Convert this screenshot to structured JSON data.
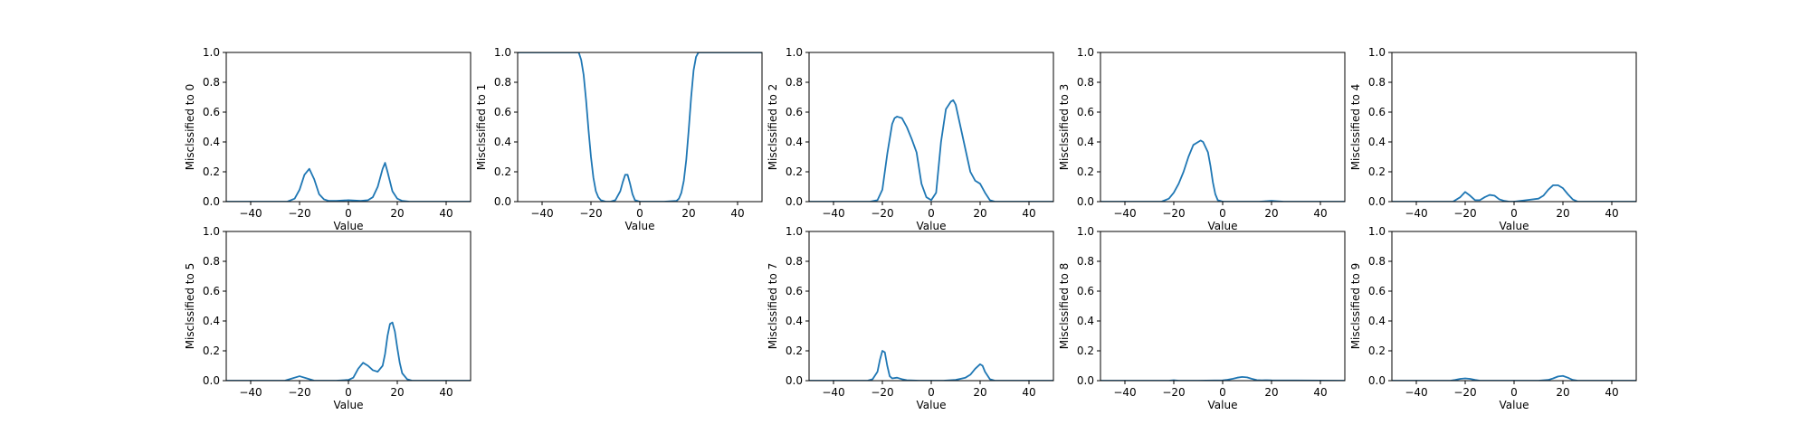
{
  "figure": {
    "line_color": "#1f77b4"
  },
  "chart_data": [
    {
      "type": "line",
      "ylabel": "Misclssified to 0",
      "xlabel": "Value",
      "xlim": [
        -50,
        50
      ],
      "ylim": [
        0,
        1.0
      ],
      "xticks": [
        -40,
        -20,
        0,
        20,
        40
      ],
      "yticks": [
        0.0,
        0.2,
        0.4,
        0.6,
        0.8,
        1.0
      ],
      "xtick_labels": [
        "−40",
        "−20",
        "0",
        "20",
        "40"
      ],
      "ytick_labels": [
        "0.0",
        "0.2",
        "0.4",
        "0.6",
        "0.8",
        "1.0"
      ],
      "series": [
        {
          "x": [
            -50,
            -30,
            -25,
            -22,
            -20,
            -18,
            -16,
            -14,
            -12,
            -10,
            -8,
            -5,
            0,
            5,
            8,
            10,
            12,
            14,
            15,
            16,
            18,
            20,
            22,
            25,
            30,
            50
          ],
          "y": [
            0,
            0,
            0,
            0.02,
            0.08,
            0.18,
            0.22,
            0.15,
            0.05,
            0.015,
            0.005,
            0.005,
            0.01,
            0.005,
            0.01,
            0.03,
            0.1,
            0.22,
            0.26,
            0.2,
            0.07,
            0.02,
            0.005,
            0,
            0,
            0
          ]
        }
      ]
    },
    {
      "type": "line",
      "ylabel": "Misclssified to 1",
      "xlabel": "Value",
      "xlim": [
        -50,
        50
      ],
      "ylim": [
        0,
        1.0
      ],
      "xticks": [
        -40,
        -20,
        0,
        20,
        40
      ],
      "yticks": [
        0.0,
        0.2,
        0.4,
        0.6,
        0.8,
        1.0
      ],
      "xtick_labels": [
        "−40",
        "−20",
        "0",
        "20",
        "40"
      ],
      "ytick_labels": [
        "0.0",
        "0.2",
        "0.4",
        "0.6",
        "0.8",
        "1.0"
      ],
      "series": [
        {
          "x": [
            -50,
            -26,
            -25,
            -24,
            -23,
            -22,
            -21,
            -20,
            -19,
            -18,
            -17,
            -16,
            -14,
            -12,
            -10,
            -8,
            -7,
            -6,
            -5,
            -4,
            -3,
            -2,
            0,
            5,
            10,
            15,
            16,
            17,
            18,
            19,
            20,
            21,
            22,
            23,
            24,
            25,
            50
          ],
          "y": [
            1.0,
            1.0,
            1.0,
            0.95,
            0.85,
            0.68,
            0.48,
            0.3,
            0.16,
            0.07,
            0.03,
            0.01,
            0,
            0,
            0.01,
            0.07,
            0.13,
            0.18,
            0.18,
            0.12,
            0.05,
            0.01,
            0,
            0,
            0,
            0.005,
            0.02,
            0.06,
            0.14,
            0.28,
            0.48,
            0.7,
            0.88,
            0.97,
            1.0,
            1.0,
            1.0
          ]
        }
      ]
    },
    {
      "type": "line",
      "ylabel": "Misclssified to 2",
      "xlabel": "Value",
      "xlim": [
        -50,
        50
      ],
      "ylim": [
        0,
        1.0
      ],
      "xticks": [
        -40,
        -20,
        0,
        20,
        40
      ],
      "yticks": [
        0.0,
        0.2,
        0.4,
        0.6,
        0.8,
        1.0
      ],
      "xtick_labels": [
        "−40",
        "−20",
        "0",
        "20",
        "40"
      ],
      "ytick_labels": [
        "0.0",
        "0.2",
        "0.4",
        "0.6",
        "0.8",
        "1.0"
      ],
      "series": [
        {
          "x": [
            -50,
            -25,
            -22,
            -20,
            -18,
            -16,
            -15,
            -14,
            -12,
            -10,
            -8,
            -6,
            -4,
            -2,
            0,
            2,
            4,
            6,
            8,
            9,
            10,
            12,
            14,
            16,
            18,
            20,
            22,
            24,
            26,
            50
          ],
          "y": [
            0,
            0,
            0.01,
            0.08,
            0.32,
            0.52,
            0.56,
            0.57,
            0.56,
            0.5,
            0.42,
            0.33,
            0.12,
            0.03,
            0.01,
            0.06,
            0.4,
            0.62,
            0.67,
            0.68,
            0.65,
            0.5,
            0.35,
            0.2,
            0.14,
            0.12,
            0.06,
            0.01,
            0,
            0
          ]
        }
      ]
    },
    {
      "type": "line",
      "ylabel": "Misclssified to 3",
      "xlabel": "Value",
      "xlim": [
        -50,
        50
      ],
      "ylim": [
        0,
        1.0
      ],
      "xticks": [
        -40,
        -20,
        0,
        20,
        40
      ],
      "yticks": [
        0.0,
        0.2,
        0.4,
        0.6,
        0.8,
        1.0
      ],
      "xtick_labels": [
        "−40",
        "−20",
        "0",
        "20",
        "40"
      ],
      "ytick_labels": [
        "0.0",
        "0.2",
        "0.4",
        "0.6",
        "0.8",
        "1.0"
      ],
      "series": [
        {
          "x": [
            -50,
            -25,
            -22,
            -20,
            -18,
            -16,
            -14,
            -12,
            -10,
            -9,
            -8,
            -6,
            -5,
            -4,
            -3,
            -2,
            0,
            5,
            15,
            18,
            20,
            22,
            25,
            50
          ],
          "y": [
            0,
            0,
            0.02,
            0.06,
            0.12,
            0.2,
            0.3,
            0.38,
            0.4,
            0.41,
            0.4,
            0.33,
            0.24,
            0.13,
            0.05,
            0.01,
            0,
            0,
            0,
            0.003,
            0.005,
            0.003,
            0,
            0
          ]
        }
      ]
    },
    {
      "type": "line",
      "ylabel": "Misclssified to 4",
      "xlabel": "Value",
      "xlim": [
        -50,
        50
      ],
      "ylim": [
        0,
        1.0
      ],
      "xticks": [
        -40,
        -20,
        0,
        20,
        40
      ],
      "yticks": [
        0.0,
        0.2,
        0.4,
        0.6,
        0.8,
        1.0
      ],
      "xtick_labels": [
        "−40",
        "−20",
        "0",
        "20",
        "40"
      ],
      "ytick_labels": [
        "0.0",
        "0.2",
        "0.4",
        "0.6",
        "0.8",
        "1.0"
      ],
      "series": [
        {
          "x": [
            -50,
            -25,
            -22,
            -20,
            -18,
            -16,
            -14,
            -12,
            -10,
            -8,
            -6,
            -4,
            -2,
            0,
            5,
            10,
            12,
            14,
            16,
            18,
            20,
            22,
            24,
            26,
            50
          ],
          "y": [
            0,
            0,
            0.03,
            0.065,
            0.04,
            0.01,
            0.01,
            0.03,
            0.045,
            0.04,
            0.015,
            0.005,
            0,
            0,
            0.01,
            0.02,
            0.04,
            0.08,
            0.11,
            0.11,
            0.09,
            0.05,
            0.015,
            0,
            0
          ]
        }
      ]
    },
    {
      "type": "line",
      "ylabel": "Misclssified to 5",
      "xlabel": "Value",
      "xlim": [
        -50,
        50
      ],
      "ylim": [
        0,
        1.0
      ],
      "xticks": [
        -40,
        -20,
        0,
        20,
        40
      ],
      "yticks": [
        0.0,
        0.2,
        0.4,
        0.6,
        0.8,
        1.0
      ],
      "xtick_labels": [
        "−40",
        "−20",
        "0",
        "20",
        "40"
      ],
      "ytick_labels": [
        "0.0",
        "0.2",
        "0.4",
        "0.6",
        "0.8",
        "1.0"
      ],
      "series": [
        {
          "x": [
            -50,
            -26,
            -23,
            -20,
            -17,
            -14,
            -10,
            -5,
            0,
            2,
            4,
            6,
            8,
            10,
            12,
            14,
            15,
            16,
            17,
            18,
            19,
            20,
            21,
            22,
            24,
            26,
            50
          ],
          "y": [
            0,
            0,
            0.015,
            0.03,
            0.015,
            0,
            0,
            0,
            0.005,
            0.02,
            0.08,
            0.12,
            0.1,
            0.07,
            0.06,
            0.1,
            0.18,
            0.3,
            0.38,
            0.39,
            0.33,
            0.22,
            0.12,
            0.05,
            0.01,
            0,
            0
          ]
        }
      ]
    },
    null,
    {
      "type": "line",
      "ylabel": "Misclssified to 7",
      "xlabel": "Value",
      "xlim": [
        -50,
        50
      ],
      "ylim": [
        0,
        1.0
      ],
      "xticks": [
        -40,
        -20,
        0,
        20,
        40
      ],
      "yticks": [
        0.0,
        0.2,
        0.4,
        0.6,
        0.8,
        1.0
      ],
      "xtick_labels": [
        "−40",
        "−20",
        "0",
        "20",
        "40"
      ],
      "ytick_labels": [
        "0.0",
        "0.2",
        "0.4",
        "0.6",
        "0.8",
        "1.0"
      ],
      "series": [
        {
          "x": [
            -50,
            -26,
            -24,
            -22,
            -21,
            -20,
            -19,
            -18,
            -17,
            -16,
            -14,
            -12,
            -10,
            -5,
            0,
            5,
            10,
            14,
            16,
            18,
            20,
            21,
            22,
            24,
            26,
            50
          ],
          "y": [
            0,
            0,
            0.01,
            0.06,
            0.14,
            0.2,
            0.19,
            0.1,
            0.03,
            0.015,
            0.02,
            0.01,
            0.003,
            0,
            0,
            0,
            0.005,
            0.02,
            0.04,
            0.08,
            0.11,
            0.1,
            0.06,
            0.01,
            0,
            0
          ]
        }
      ]
    },
    {
      "type": "line",
      "ylabel": "Misclssified to 8",
      "xlabel": "Value",
      "xlim": [
        -50,
        50
      ],
      "ylim": [
        0,
        1.0
      ],
      "xticks": [
        -40,
        -20,
        0,
        20,
        40
      ],
      "yticks": [
        0.0,
        0.2,
        0.4,
        0.6,
        0.8,
        1.0
      ],
      "xtick_labels": [
        "−40",
        "−20",
        "0",
        "20",
        "40"
      ],
      "ytick_labels": [
        "0.0",
        "0.2",
        "0.4",
        "0.6",
        "0.8",
        "1.0"
      ],
      "series": [
        {
          "x": [
            -50,
            -22,
            -20,
            -18,
            -10,
            0,
            2,
            4,
            6,
            8,
            10,
            12,
            14,
            16,
            18,
            20,
            50
          ],
          "y": [
            0,
            0,
            0.003,
            0,
            0,
            0.002,
            0.006,
            0.012,
            0.02,
            0.025,
            0.022,
            0.012,
            0.004,
            0.002,
            0.003,
            0.002,
            0
          ]
        }
      ]
    },
    {
      "type": "line",
      "ylabel": "Misclssified to 9",
      "xlabel": "Value",
      "xlim": [
        -50,
        50
      ],
      "ylim": [
        0,
        1.0
      ],
      "xticks": [
        -40,
        -20,
        0,
        20,
        40
      ],
      "yticks": [
        0.0,
        0.2,
        0.4,
        0.6,
        0.8,
        1.0
      ],
      "xtick_labels": [
        "−40",
        "−20",
        "0",
        "20",
        "40"
      ],
      "ytick_labels": [
        "0.0",
        "0.2",
        "0.4",
        "0.6",
        "0.8",
        "1.0"
      ],
      "series": [
        {
          "x": [
            -50,
            -26,
            -24,
            -22,
            -20,
            -18,
            -16,
            -14,
            -5,
            10,
            14,
            16,
            18,
            20,
            22,
            24,
            26,
            50
          ],
          "y": [
            0,
            0,
            0.005,
            0.012,
            0.015,
            0.012,
            0.005,
            0,
            0,
            0,
            0.005,
            0.015,
            0.028,
            0.032,
            0.02,
            0.005,
            0,
            0
          ]
        }
      ]
    }
  ]
}
